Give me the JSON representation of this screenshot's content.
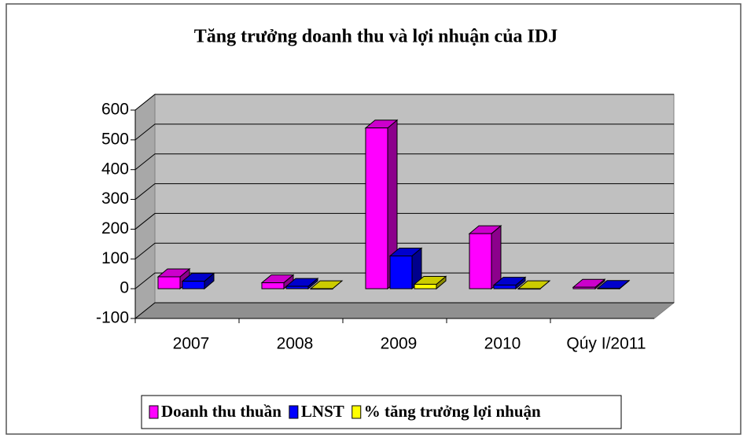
{
  "chart_data": {
    "type": "bar3d",
    "title": "Tăng trưởng doanh thu và lợi nhuận của IDJ",
    "categories": [
      "2007",
      "2008",
      "2009",
      "2010",
      "Qúy I/2011"
    ],
    "series": [
      {
        "name": "Doanh thu thuần",
        "color": "#ff00ff",
        "values": [
          40,
          20,
          540,
          185,
          5
        ]
      },
      {
        "name": "LNST",
        "color": "#0000ff",
        "values": [
          25,
          8,
          110,
          12,
          1
        ]
      },
      {
        "name": "% tăng trưởng lợi nhuận",
        "color": "#ffff00",
        "values": [
          null,
          0,
          15,
          0,
          null
        ]
      }
    ],
    "ylim": [
      -100,
      600
    ],
    "yticks": [
      -100,
      0,
      100,
      200,
      300,
      400,
      500,
      600
    ],
    "grid": true
  }
}
